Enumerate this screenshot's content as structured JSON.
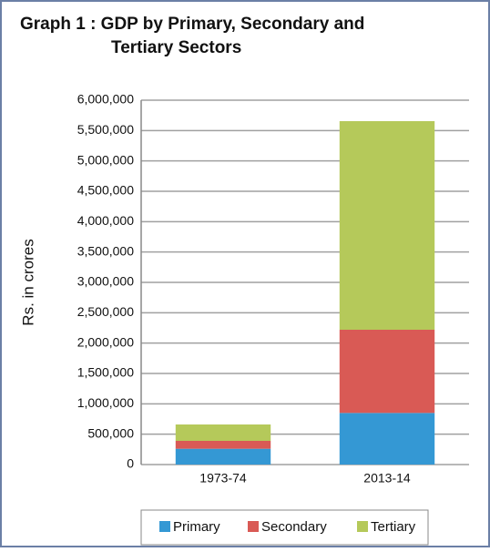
{
  "chart_data": {
    "type": "stacked_bar",
    "title": "Graph 1 :  GDP by Primary, Secondary and",
    "subtitle": "Tertiary  Sectors",
    "y_label": "Rs. in crores",
    "categories": [
      "1973-74",
      "2013-14"
    ],
    "series": [
      {
        "name": "Primary",
        "color": "#3498d4",
        "values": [
          260000,
          850000
        ]
      },
      {
        "name": "Secondary",
        "color": "#d95a55",
        "values": [
          130000,
          1370000
        ]
      },
      {
        "name": "Tertiary",
        "color": "#b5c95a",
        "values": [
          270000,
          3435000
        ]
      }
    ],
    "ylim": [
      0,
      6000000
    ],
    "yticks": [
      0,
      {
        "value": 500000,
        "label": "500,000"
      },
      {
        "value": 1000000,
        "label": "1,000,000"
      },
      {
        "value": 1500000,
        "label": "1,500,000"
      },
      {
        "value": 2000000,
        "label": "2,000,000"
      },
      {
        "value": 2500000,
        "label": "2,500,000"
      },
      {
        "value": 3000000,
        "label": "3,000,000"
      },
      {
        "value": 3500000,
        "label": "3,500,000"
      },
      {
        "value": 4000000,
        "label": "4,000,000"
      },
      {
        "value": 4500000,
        "label": "4,500,000"
      },
      {
        "value": 5000000,
        "label": "5,000,000"
      },
      {
        "value": 5500000,
        "label": "5,500,000"
      },
      {
        "value": 6000000,
        "label": "6,000,000"
      }
    ],
    "grid": true,
    "legend": "bottom"
  }
}
